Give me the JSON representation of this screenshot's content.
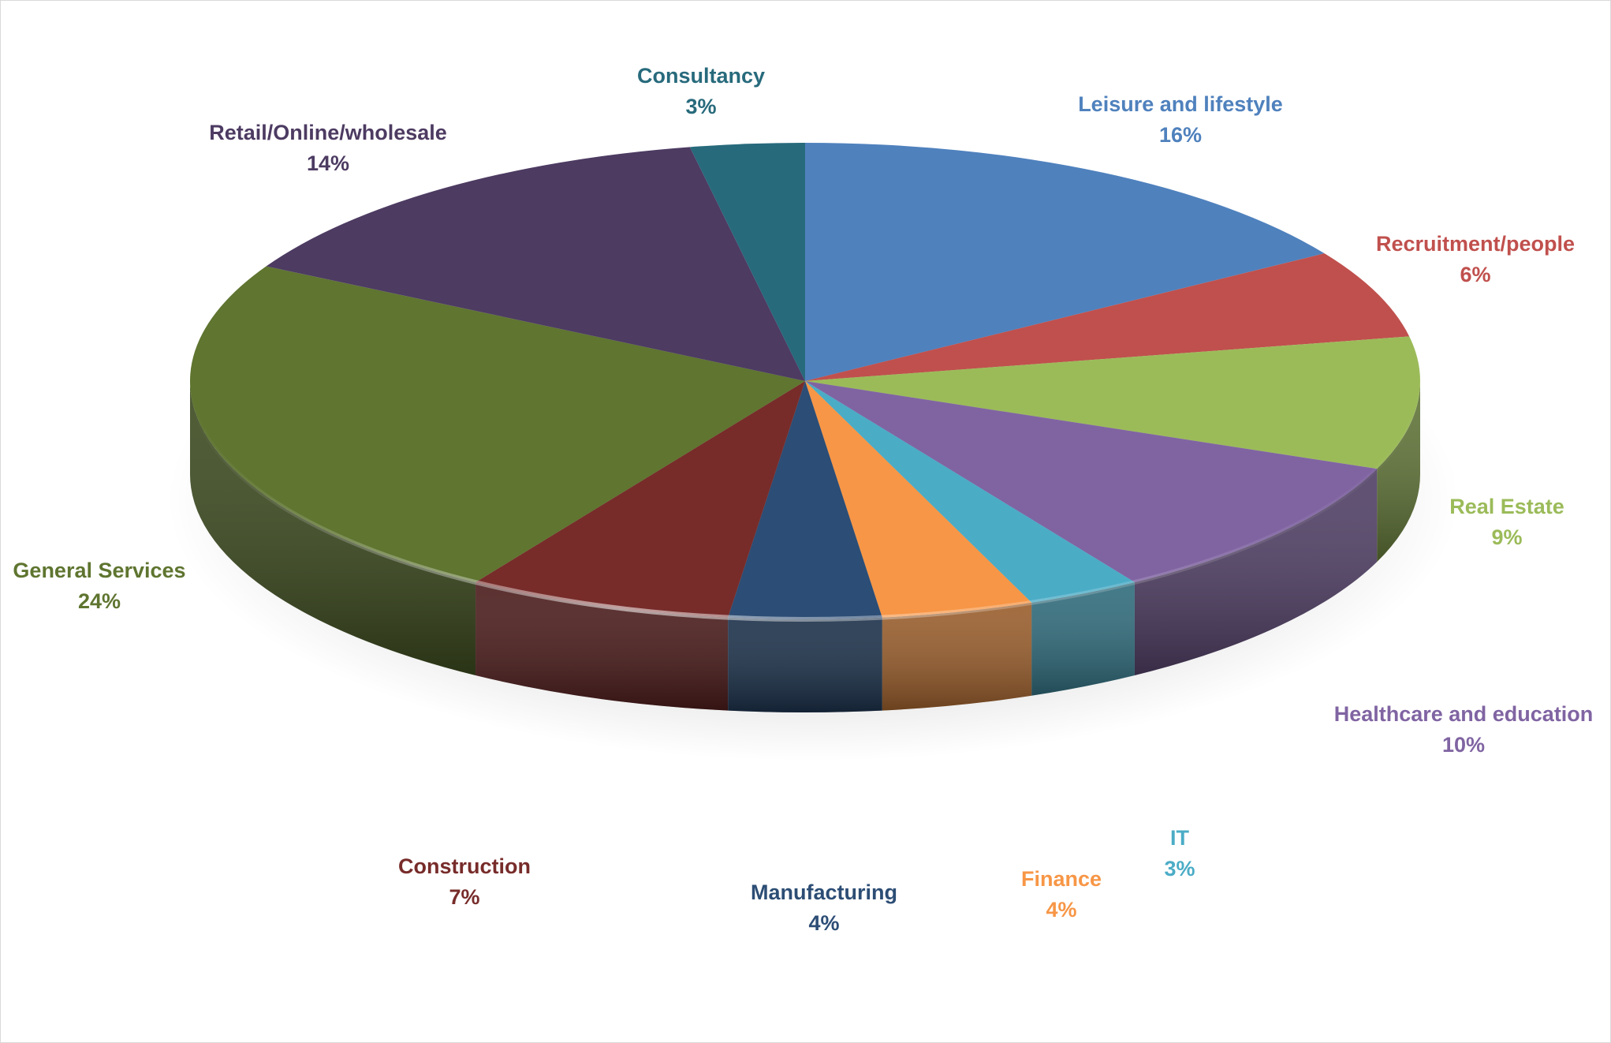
{
  "chart_data": {
    "type": "pie",
    "title": "",
    "series": [
      {
        "values": [
          16,
          6,
          9,
          10,
          3,
          4,
          4,
          7,
          24,
          14,
          3
        ]
      }
    ],
    "categories": [
      "Leisure and lifestyle",
      "Recruitment/people",
      "Real Estate",
      "Healthcare and education",
      "IT",
      "Finance",
      "Manufacturing",
      "Construction",
      "General Services",
      "Retail/Online/wholesale",
      "Consultancy"
    ],
    "percent_labels": [
      "16%",
      "6%",
      "9%",
      "10%",
      "3%",
      "4%",
      "4%",
      "7%",
      "24%",
      "14%",
      "3%"
    ],
    "colors": [
      "#4F81BD",
      "#C0504D",
      "#9BBB59",
      "#8064A2",
      "#4BACC6",
      "#F79646",
      "#2C4D75",
      "#772C2A",
      "#5F7530",
      "#4D3B62",
      "#276A7C"
    ],
    "label_colors": [
      "#4F81BD",
      "#C0504D",
      "#9BBB59",
      "#8064A2",
      "#4BACC6",
      "#F79646",
      "#2C4D75",
      "#772C2A",
      "#5F7530",
      "#4D3B62",
      "#276A7C"
    ],
    "style": "3d",
    "legend": "none",
    "data_labels": "category-and-percent"
  }
}
